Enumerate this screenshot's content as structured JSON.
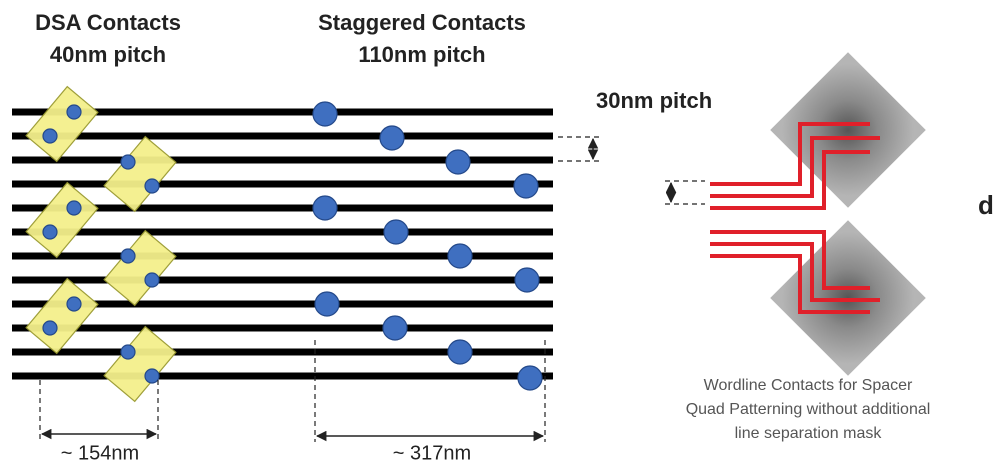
{
  "labels": {
    "dsa_title": "DSA Contacts",
    "dsa_pitch": "40nm pitch",
    "staggered_title": "Staggered Contacts",
    "staggered_pitch": "110nm pitch",
    "line_pitch": "30nm pitch",
    "cut_letter": "d",
    "dsa_span": "~ 154nm",
    "staggered_span": "~ 317nm",
    "caption": [
      "Wordline Contacts for Spacer",
      "Quad Patterning without additional",
      "line separation mask"
    ]
  }
}
